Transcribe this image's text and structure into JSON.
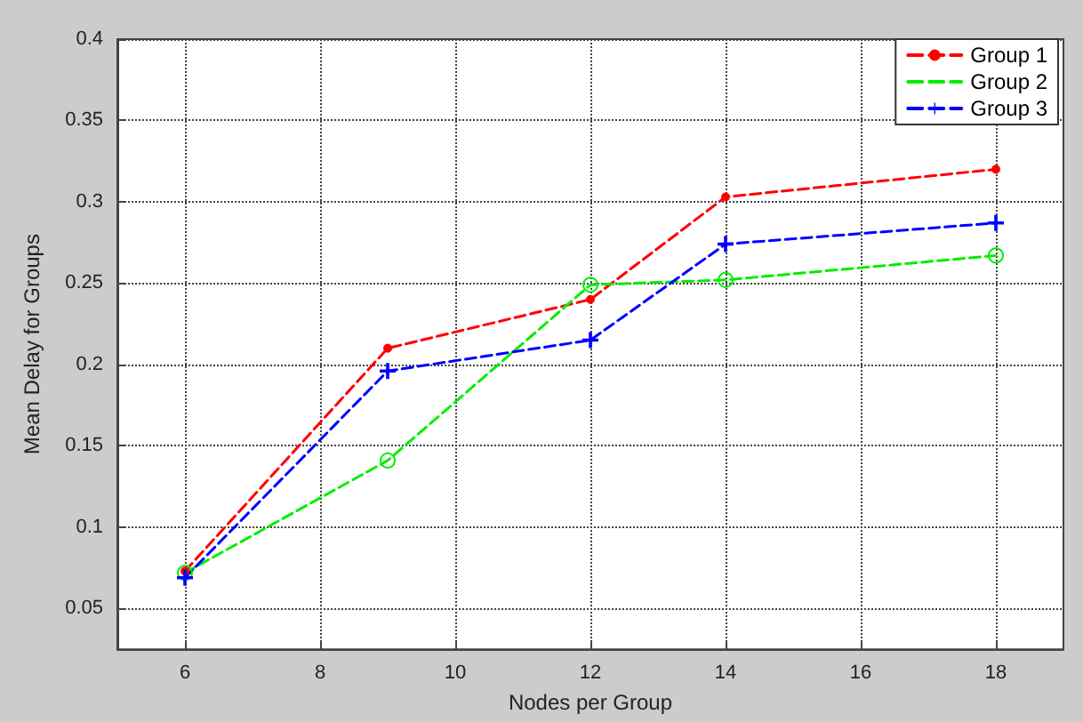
{
  "chart_data": {
    "type": "line",
    "xlabel": "Nodes per Group",
    "ylabel": "Mean Delay for Groups",
    "xlim": [
      5,
      19
    ],
    "xticks": [
      6,
      8,
      10,
      12,
      14,
      16,
      18
    ],
    "ylim": [
      0.025,
      0.4
    ],
    "yticks": [
      0.05,
      0.1,
      0.15,
      0.2,
      0.25,
      0.3,
      0.35,
      0.4
    ],
    "grid": true,
    "legend": "top right",
    "line_style": "dashed",
    "series": [
      {
        "name": "Group 1",
        "color": "#ff0000",
        "marker": "circle",
        "x": [
          6,
          9,
          12,
          14,
          18
        ],
        "values": [
          0.073,
          0.21,
          0.24,
          0.303,
          0.32
        ]
      },
      {
        "name": "Group 2",
        "color": "#00ee00",
        "marker": "circle",
        "x": [
          6,
          9,
          12,
          14,
          18
        ],
        "values": [
          0.072,
          0.141,
          0.249,
          0.252,
          0.267
        ]
      },
      {
        "name": "Group 3",
        "color": "#0000ff",
        "marker": "cross",
        "x": [
          6,
          9,
          12,
          14,
          18
        ],
        "values": [
          0.069,
          0.196,
          0.215,
          0.274,
          0.287
        ]
      }
    ]
  }
}
